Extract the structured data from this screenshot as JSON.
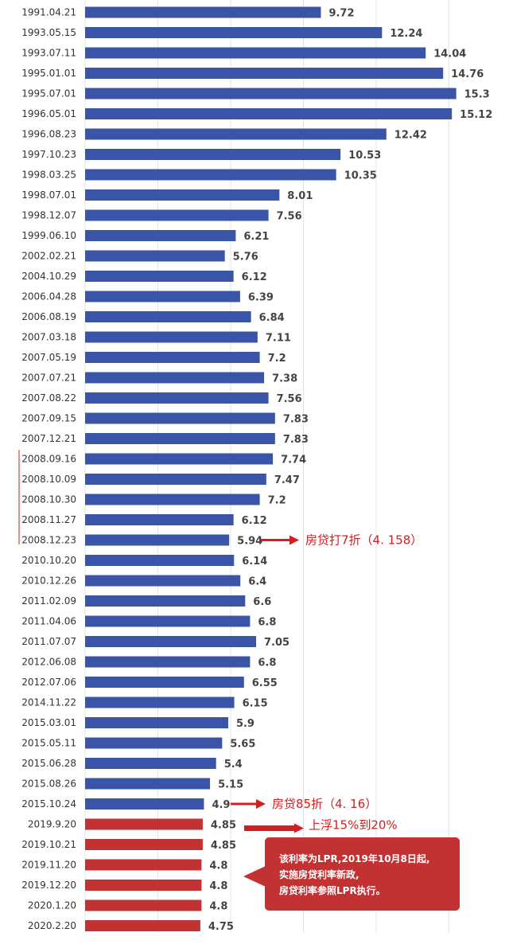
{
  "chart_data": {
    "type": "bar",
    "orientation": "horizontal",
    "categories": [
      "1991.04.21",
      "1993.05.15",
      "1993.07.11",
      "1995.01.01",
      "1995.07.01",
      "1996.05.01",
      "1996.08.23",
      "1997.10.23",
      "1998.03.25",
      "1998.07.01",
      "1998.12.07",
      "1999.06.10",
      "2002.02.21",
      "2004.10.29",
      "2006.04.28",
      "2006.08.19",
      "2007.03.18",
      "2007.05.19",
      "2007.07.21",
      "2007.08.22",
      "2007.09.15",
      "2007.12.21",
      "2008.09.16",
      "2008.10.09",
      "2008.10.30",
      "2008.11.27",
      "2008.12.23",
      "2010.10.20",
      "2010.12.26",
      "2011.02.09",
      "2011.04.06",
      "2011.07.07",
      "2012.06.08",
      "2012.07.06",
      "2014.11.22",
      "2015.03.01",
      "2015.05.11",
      "2015.06.28",
      "2015.08.26",
      "2015.10.24",
      "2019.9.20",
      "2019.10.21",
      "2019.11.20",
      "2019.12.20",
      "2020.1.20",
      "2020.2.20"
    ],
    "values": [
      9.72,
      12.24,
      14.04,
      14.76,
      15.3,
      15.12,
      12.42,
      10.53,
      10.35,
      8.01,
      7.56,
      6.21,
      5.76,
      6.12,
      6.39,
      6.84,
      7.11,
      7.2,
      7.38,
      7.56,
      7.83,
      7.83,
      7.74,
      7.47,
      7.2,
      6.12,
      5.94,
      6.14,
      6.4,
      6.6,
      6.8,
      7.05,
      6.8,
      6.55,
      6.15,
      5.9,
      5.65,
      5.4,
      5.15,
      4.9,
      4.85,
      4.85,
      4.8,
      4.8,
      4.8,
      4.75
    ],
    "value_labels": [
      "9.72",
      "12.24",
      "14.04",
      "14.76",
      "15.3",
      "15.12",
      "12.42",
      "10.53",
      "10.35",
      "8.01",
      "7.56",
      "6.21",
      "5.76",
      "6.12",
      "6.39",
      "6.84",
      "7.11",
      "7.2",
      "7.38",
      "7.56",
      "7.83",
      "7.83",
      "7.74",
      "7.47",
      "7.2",
      "6.12",
      "5.94",
      "6.14",
      "6.4",
      "6.6",
      "6.8",
      "7.05",
      "6.8",
      "6.55",
      "6.15",
      "5.9",
      "5.65",
      "5.4",
      "5.15",
      "4.9",
      "4.85",
      "4.85",
      "4.8",
      "4.8",
      "4.8",
      "4.75"
    ],
    "colors": {
      "benchmark": "#3a55a8",
      "lpr": "#c33233",
      "annotation": "#d11f1f",
      "grid": "#e4e4e4"
    },
    "lpr_from_index": 40,
    "xlim": [
      0,
      16
    ],
    "grid": true,
    "annotations": [
      {
        "text": "房贷打7折（4. 158）",
        "row": 26
      },
      {
        "text": "房贷85折（4. 16）",
        "row": 39
      },
      {
        "text": "上浮15%到20%",
        "row": 40
      }
    ],
    "note": {
      "lines": [
        "该利率为LPR,2019年10月8日起,",
        "实施房贷利率新政,",
        "房贷利率参照LPR执行。"
      ]
    }
  }
}
